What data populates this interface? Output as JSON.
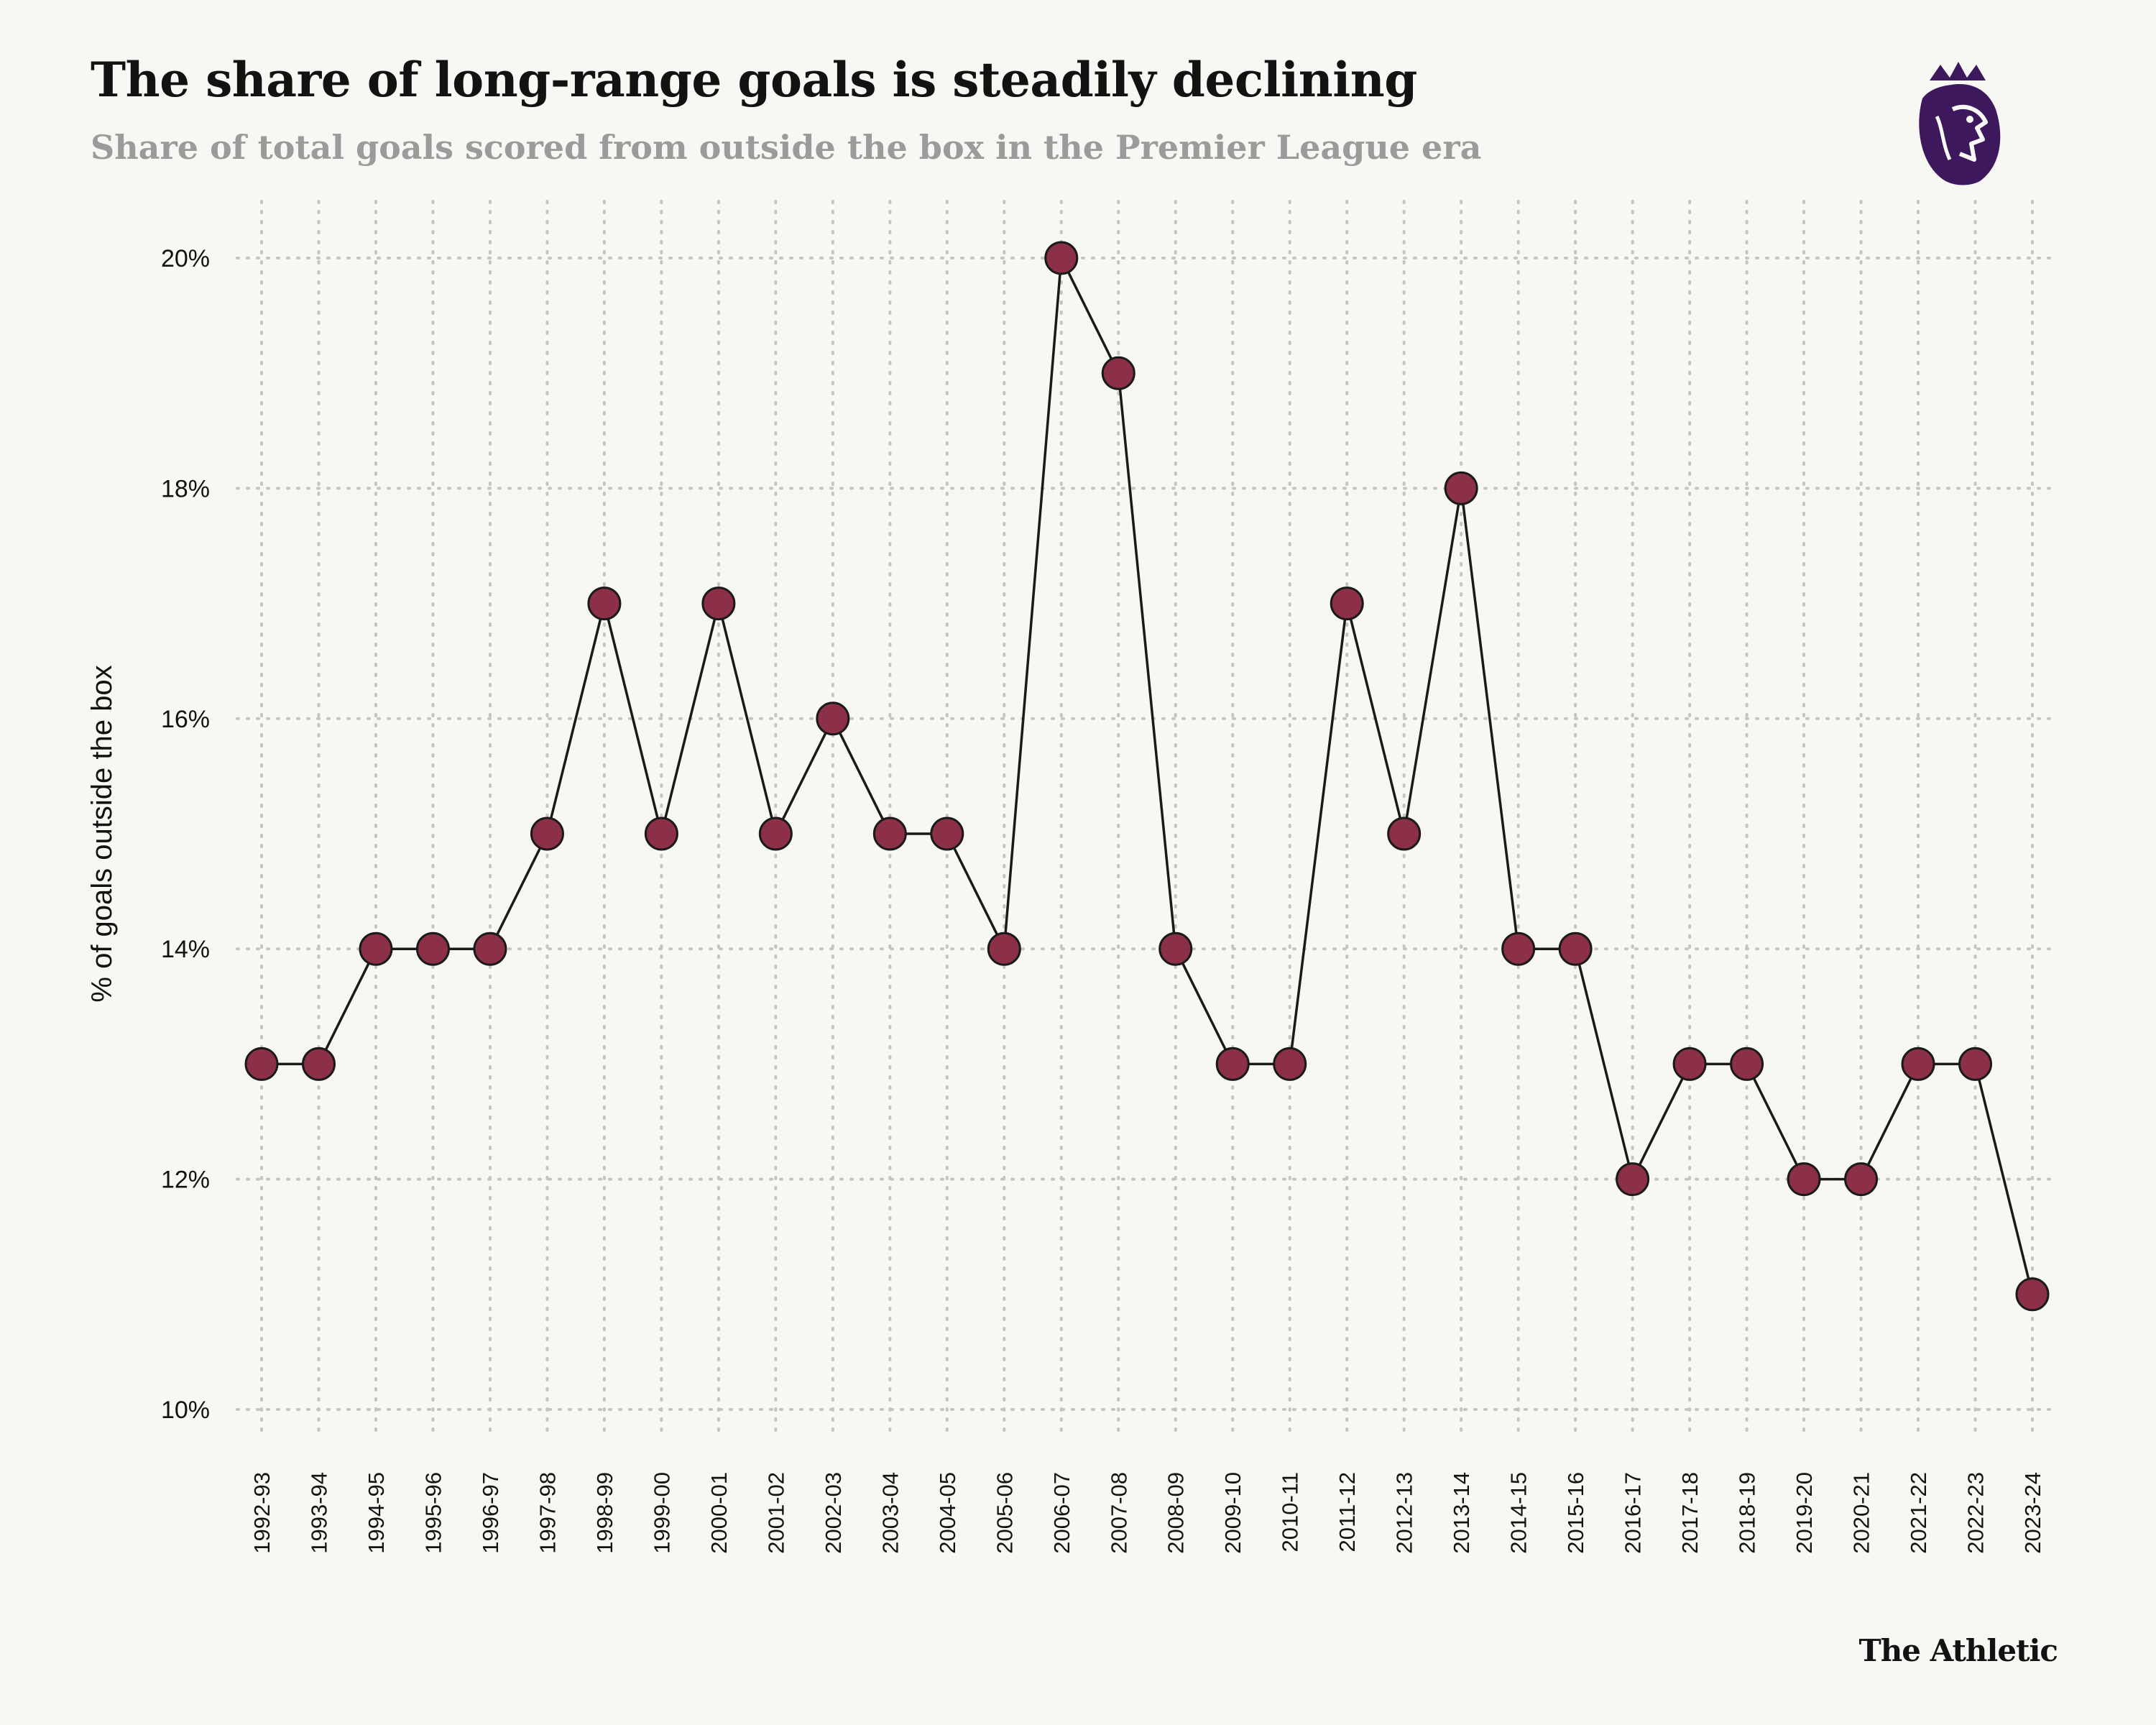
{
  "header": {
    "title": "The share of long-range goals is steadily declining",
    "subtitle": "Share of total goals scored from outside the box in the Premier League era"
  },
  "brand": {
    "name": "The Athletic",
    "logo_icon": "premier-league-lion-icon",
    "logo_color": "#3d185c"
  },
  "colors": {
    "marker_fill": "#8c3047",
    "marker_stroke": "#1a1a1a",
    "line": "#1a1a1a",
    "grid": "#c4c4c0"
  },
  "chart_data": {
    "type": "line",
    "title": "The share of long-range goals is steadily declining",
    "subtitle": "Share of total goals scored from outside the box in the Premier League era",
    "xlabel": "",
    "ylabel": "% of goals outside the box",
    "ylim": [
      10,
      20
    ],
    "yticks": [
      10,
      12,
      14,
      16,
      18,
      20
    ],
    "ytick_labels": [
      "10%",
      "12%",
      "14%",
      "16%",
      "18%",
      "20%"
    ],
    "grid": true,
    "categories": [
      "1992-93",
      "1993-94",
      "1994-95",
      "1995-96",
      "1996-97",
      "1997-98",
      "1998-99",
      "1999-00",
      "2000-01",
      "2001-02",
      "2002-03",
      "2003-04",
      "2004-05",
      "2005-06",
      "2006-07",
      "2007-08",
      "2008-09",
      "2009-10",
      "2010-11",
      "2011-12",
      "2012-13",
      "2013-14",
      "2014-15",
      "2015-16",
      "2016-17",
      "2017-18",
      "2018-19",
      "2019-20",
      "2020-21",
      "2021-22",
      "2022-23",
      "2023-24"
    ],
    "values": [
      13,
      13,
      14,
      14,
      14,
      15,
      17,
      15,
      17,
      15,
      16,
      15,
      15,
      14,
      20,
      19,
      14,
      13,
      13,
      17,
      15,
      18,
      14,
      14,
      12,
      13,
      13,
      12,
      12,
      13,
      13,
      11
    ]
  }
}
